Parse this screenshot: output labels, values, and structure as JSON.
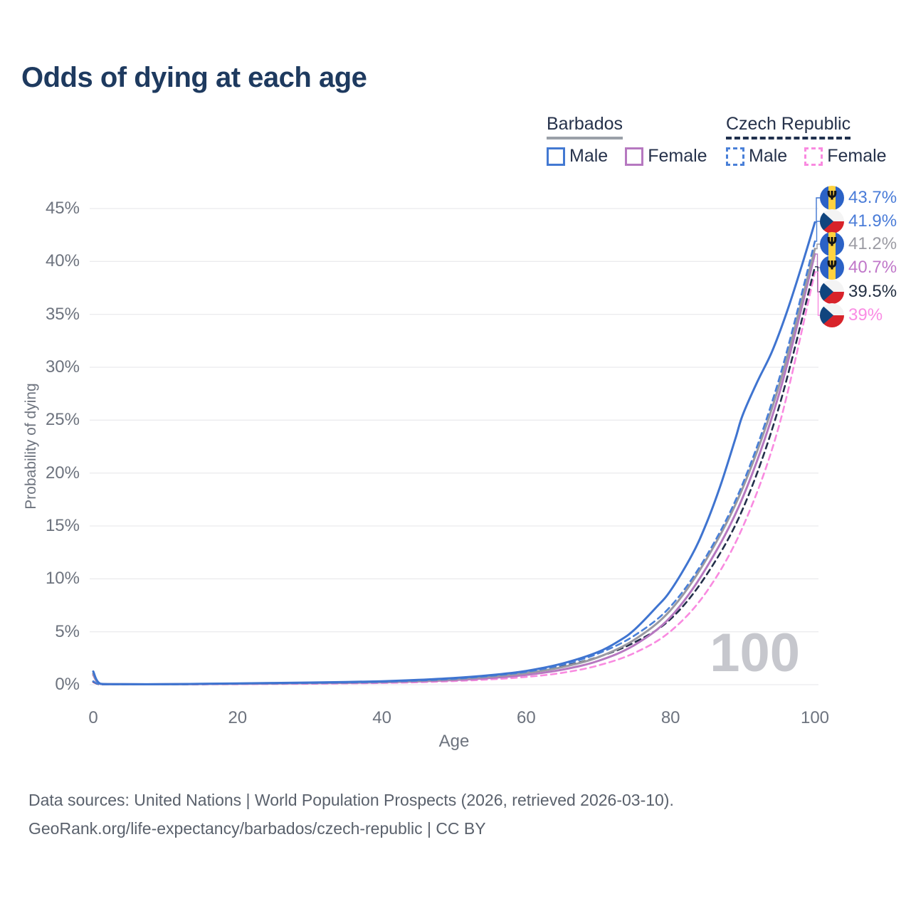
{
  "title": "Odds of dying at each age",
  "watermark_age": "100",
  "legend": {
    "groups": [
      {
        "label": "Barbados",
        "line_style": "solid",
        "underline_color": "#9aa0a8",
        "items": [
          {
            "label": "Male",
            "color": "#4379d2"
          },
          {
            "label": "Female",
            "color": "#b678c0"
          }
        ]
      },
      {
        "label": "Czech Republic",
        "line_style": "dashed",
        "underline_color": "#20304d",
        "items": [
          {
            "label": "Male",
            "color": "#4a80d8"
          },
          {
            "label": "Female",
            "color": "#f98ae0"
          }
        ]
      }
    ]
  },
  "chart_data": {
    "type": "line",
    "title": "Odds of dying at each age",
    "xlabel": "Age",
    "ylabel": "Probability of dying",
    "xlim": [
      0,
      100
    ],
    "ylim": [
      0,
      45
    ],
    "x_ticks": [
      "0",
      "20",
      "40",
      "60",
      "80",
      "100"
    ],
    "y_ticks": [
      "0%",
      "5%",
      "10%",
      "15%",
      "20%",
      "25%",
      "30%",
      "35%",
      "40%",
      "45%"
    ],
    "grid": "horizontal gridlines every 5%",
    "legend_position": "top-right",
    "series": [
      {
        "name": "Barbados Male",
        "country": "Barbados",
        "sex": "Male",
        "color": "#3f74d0",
        "label_color": "#4a7cd8",
        "dash": false,
        "flag": "barbados",
        "end_label": "43.7%",
        "points": [
          [
            0,
            1.25
          ],
          [
            1,
            0.09
          ],
          [
            4,
            0.05
          ],
          [
            10,
            0.05
          ],
          [
            15,
            0.08
          ],
          [
            20,
            0.12
          ],
          [
            25,
            0.16
          ],
          [
            30,
            0.2
          ],
          [
            35,
            0.25
          ],
          [
            40,
            0.32
          ],
          [
            45,
            0.45
          ],
          [
            50,
            0.63
          ],
          [
            55,
            0.9
          ],
          [
            60,
            1.3
          ],
          [
            65,
            2.0
          ],
          [
            70,
            3.1
          ],
          [
            73,
            4.2
          ],
          [
            75,
            5.2
          ],
          [
            78,
            7.3
          ],
          [
            80,
            8.9
          ],
          [
            83,
            12.3
          ],
          [
            85,
            15.3
          ],
          [
            87,
            19.0
          ],
          [
            89,
            23.3
          ],
          [
            90,
            25.5
          ],
          [
            92,
            28.6
          ],
          [
            94,
            31.4
          ],
          [
            96,
            35.0
          ],
          [
            98,
            39.2
          ],
          [
            100,
            43.7
          ]
        ]
      },
      {
        "name": "Czech Republic Male",
        "country": "Czech Republic",
        "sex": "Male",
        "color": "#4a80d8",
        "label_color": "#4a7cd8",
        "dash": true,
        "flag": "czech",
        "end_label": "41.9%",
        "points": [
          [
            0,
            0.32
          ],
          [
            1,
            0.04
          ],
          [
            4,
            0.03
          ],
          [
            10,
            0.03
          ],
          [
            15,
            0.06
          ],
          [
            20,
            0.1
          ],
          [
            25,
            0.13
          ],
          [
            30,
            0.16
          ],
          [
            35,
            0.21
          ],
          [
            40,
            0.27
          ],
          [
            45,
            0.39
          ],
          [
            50,
            0.56
          ],
          [
            55,
            0.83
          ],
          [
            60,
            1.22
          ],
          [
            65,
            1.88
          ],
          [
            70,
            2.95
          ],
          [
            75,
            4.65
          ],
          [
            80,
            7.4
          ],
          [
            85,
            12.2
          ],
          [
            90,
            19.0
          ],
          [
            95,
            28.8
          ],
          [
            100,
            41.9
          ]
        ]
      },
      {
        "name": "Barbados",
        "country": "Barbados",
        "sex": "Both",
        "color": "#9a9aa2",
        "label_color": "#9b9ba3",
        "dash": false,
        "flag": "barbados",
        "end_label": "41.2%",
        "points": [
          [
            0,
            1.05
          ],
          [
            1,
            0.08
          ],
          [
            4,
            0.04
          ],
          [
            10,
            0.04
          ],
          [
            15,
            0.07
          ],
          [
            20,
            0.1
          ],
          [
            25,
            0.13
          ],
          [
            30,
            0.17
          ],
          [
            35,
            0.21
          ],
          [
            40,
            0.27
          ],
          [
            45,
            0.37
          ],
          [
            50,
            0.52
          ],
          [
            55,
            0.76
          ],
          [
            60,
            1.1
          ],
          [
            65,
            1.66
          ],
          [
            70,
            2.6
          ],
          [
            75,
            4.25
          ],
          [
            80,
            7.05
          ],
          [
            85,
            11.9
          ],
          [
            90,
            18.6
          ],
          [
            95,
            28.2
          ],
          [
            100,
            41.2
          ]
        ]
      },
      {
        "name": "Barbados Female",
        "country": "Barbados",
        "sex": "Female",
        "color": "#b678c0",
        "label_color": "#c077c9",
        "dash": false,
        "flag": "barbados",
        "end_label": "40.7%",
        "points": [
          [
            0,
            0.92
          ],
          [
            1,
            0.07
          ],
          [
            4,
            0.04
          ],
          [
            10,
            0.04
          ],
          [
            15,
            0.06
          ],
          [
            20,
            0.08
          ],
          [
            25,
            0.11
          ],
          [
            30,
            0.14
          ],
          [
            35,
            0.17
          ],
          [
            40,
            0.22
          ],
          [
            45,
            0.31
          ],
          [
            50,
            0.44
          ],
          [
            55,
            0.63
          ],
          [
            60,
            0.93
          ],
          [
            65,
            1.42
          ],
          [
            70,
            2.25
          ],
          [
            75,
            3.75
          ],
          [
            80,
            6.4
          ],
          [
            85,
            11.1
          ],
          [
            90,
            17.7
          ],
          [
            95,
            27.4
          ],
          [
            100,
            40.7
          ]
        ]
      },
      {
        "name": "Czech Republic",
        "country": "Czech Republic",
        "sex": "Both",
        "color": "#222f4a",
        "label_color": "#232f42",
        "dash": true,
        "flag": "czech",
        "end_label": "39.5%",
        "points": [
          [
            0,
            0.28
          ],
          [
            1,
            0.03
          ],
          [
            4,
            0.02
          ],
          [
            10,
            0.03
          ],
          [
            15,
            0.05
          ],
          [
            20,
            0.08
          ],
          [
            25,
            0.11
          ],
          [
            30,
            0.14
          ],
          [
            35,
            0.18
          ],
          [
            40,
            0.23
          ],
          [
            45,
            0.34
          ],
          [
            50,
            0.5
          ],
          [
            55,
            0.74
          ],
          [
            60,
            1.12
          ],
          [
            65,
            1.72
          ],
          [
            70,
            2.62
          ],
          [
            75,
            4.0
          ],
          [
            80,
            6.2
          ],
          [
            85,
            10.4
          ],
          [
            90,
            16.6
          ],
          [
            95,
            26.2
          ],
          [
            100,
            39.5
          ]
        ]
      },
      {
        "name": "Czech Republic Female",
        "country": "Czech Republic",
        "sex": "Female",
        "color": "#f98ae0",
        "label_color": "#fa8ce4",
        "dash": true,
        "flag": "czech",
        "end_label": "39%",
        "points": [
          [
            0,
            0.24
          ],
          [
            1,
            0.03
          ],
          [
            4,
            0.02
          ],
          [
            10,
            0.02
          ],
          [
            15,
            0.03
          ],
          [
            20,
            0.05
          ],
          [
            25,
            0.07
          ],
          [
            30,
            0.09
          ],
          [
            35,
            0.12
          ],
          [
            40,
            0.16
          ],
          [
            45,
            0.23
          ],
          [
            50,
            0.34
          ],
          [
            55,
            0.5
          ],
          [
            60,
            0.73
          ],
          [
            65,
            1.12
          ],
          [
            70,
            1.82
          ],
          [
            75,
            3.0
          ],
          [
            80,
            5.05
          ],
          [
            85,
            8.8
          ],
          [
            90,
            14.9
          ],
          [
            95,
            24.4
          ],
          [
            100,
            39.0
          ]
        ]
      }
    ]
  },
  "flag_colors": {
    "barbados": {
      "blue": "#2b62c6",
      "gold": "#ffd23f",
      "trident": "#141414"
    },
    "czech": {
      "white": "#f4f4f4",
      "red": "#d8232a",
      "blue": "#11457e"
    }
  },
  "footer": {
    "line1": "Data sources: United Nations | World Population Prospects (2026, retrieved 2026-03-10).",
    "line2": "GeoRank.org/life-expectancy/barbados/czech-republic | CC BY"
  }
}
